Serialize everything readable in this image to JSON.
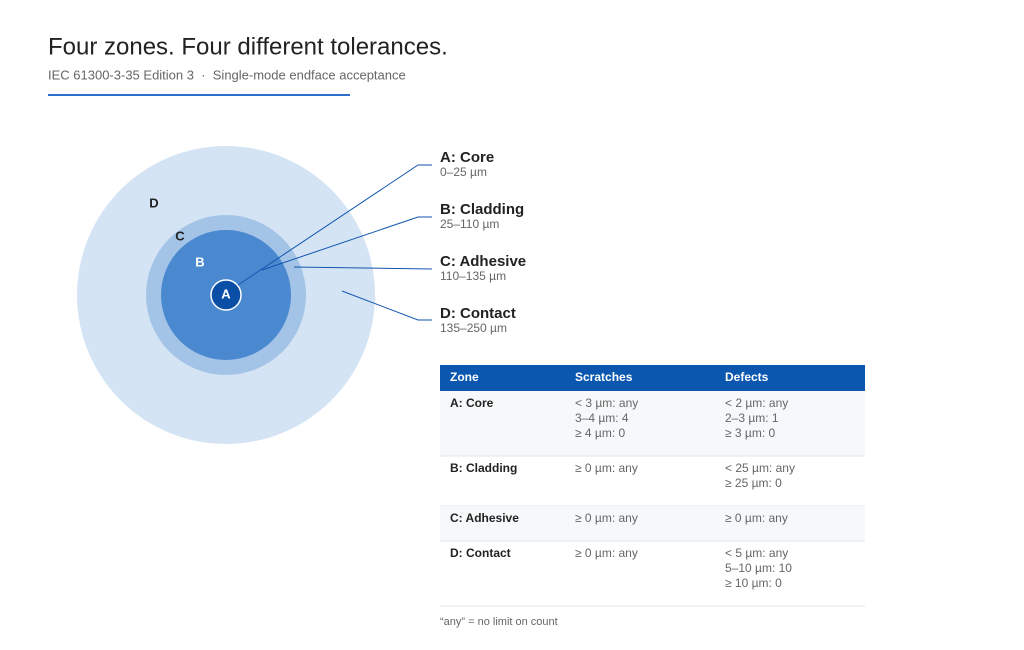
{
  "header": {
    "title": "Four zones. Four different tolerances.",
    "subtitle": "IEC 61300-3-35 Edition 3  ·  Single-mode endface acceptance"
  },
  "diagram": {
    "circle_labels": [
      "D",
      "C",
      "B",
      "A"
    ]
  },
  "zones": [
    {
      "label": "A: Core",
      "range": "0–25 µm"
    },
    {
      "label": "B: Cladding",
      "range": "25–110 µm"
    },
    {
      "label": "C: Adhesive",
      "range": "110–135 µm"
    },
    {
      "label": "D: Contact",
      "range": "135–250 µm"
    }
  ],
  "table": {
    "headers": [
      "Zone",
      "Scratches",
      "Defects"
    ],
    "rows": [
      [
        "A: Core",
        [
          "< 3 µm: any",
          "3–4 µm: 4",
          "≥ 4 µm: 0"
        ],
        [
          "< 2 µm: any",
          "2–3 µm: 1",
          "≥ 3 µm: 0"
        ]
      ],
      [
        "B: Cladding",
        [
          "≥ 0 µm: any"
        ],
        [
          "< 25 µm: any",
          "≥ 25 µm: 0"
        ]
      ],
      [
        "C: Adhesive",
        [
          "≥ 0 µm: any"
        ],
        [
          "≥ 0 µm: any"
        ]
      ],
      [
        "D: Contact",
        [
          "≥ 0 µm: any"
        ],
        [
          "< 5 µm: any",
          "5–10 µm: 10",
          "≥ 10 µm: 0"
        ]
      ]
    ]
  },
  "footnote": "“any” = no limit on count"
}
